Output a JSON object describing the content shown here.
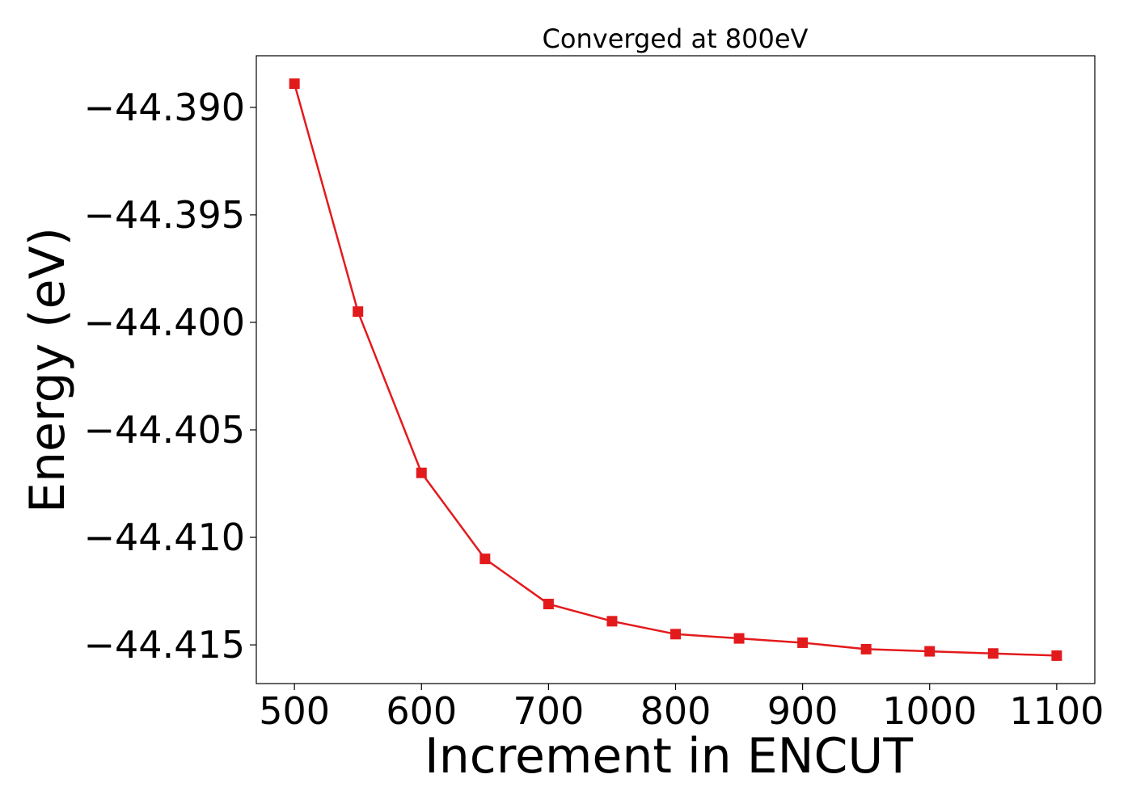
{
  "chart_data": {
    "type": "line",
    "title": "Converged at 800eV",
    "xlabel": "Increment in ENCUT",
    "ylabel": "Energy (eV)",
    "x": [
      500,
      550,
      600,
      650,
      700,
      750,
      800,
      850,
      900,
      950,
      1000,
      1050,
      1100
    ],
    "series": [
      {
        "values": [
          -44.3889,
          -44.3995,
          -44.407,
          -44.411,
          -44.4131,
          -44.4139,
          -44.4145,
          -44.4147,
          -44.4149,
          -44.4152,
          -44.4153,
          -44.4154,
          -44.4155
        ],
        "color": "#e31a1c",
        "marker": "square"
      }
    ],
    "xlim": [
      470,
      1130
    ],
    "ylim": [
      -44.4168,
      -44.3876
    ],
    "xticks": [
      500,
      600,
      700,
      800,
      900,
      1000,
      1100
    ],
    "xtick_labels": [
      "500",
      "600",
      "700",
      "800",
      "900",
      "1000",
      "1100"
    ],
    "yticks": [
      -44.39,
      -44.395,
      -44.4,
      -44.405,
      -44.41,
      -44.415
    ],
    "ytick_labels": [
      "−44.390",
      "−44.395",
      "−44.400",
      "−44.405",
      "−44.410",
      "−44.415"
    ],
    "grid": false,
    "legend": "none"
  }
}
